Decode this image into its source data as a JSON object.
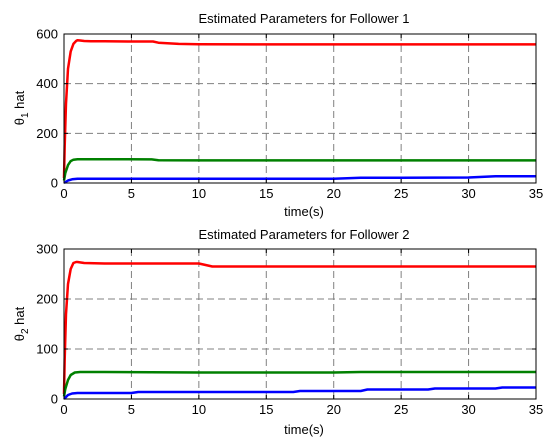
{
  "figure": {
    "background": "#ffffff"
  },
  "chart_data": [
    {
      "type": "line",
      "title": "Estimated Parameters for Follower 1",
      "xlabel": "time(s)",
      "ylabel_main": "θ",
      "ylabel_sub": "1",
      "ylabel_suffix": " hat",
      "xlim": [
        0,
        35
      ],
      "ylim": [
        0,
        600
      ],
      "xticks": [
        0,
        5,
        10,
        15,
        20,
        25,
        30,
        35
      ],
      "yticks": [
        0,
        200,
        400,
        600
      ],
      "grid": true,
      "series": [
        {
          "color": "#ff0000",
          "x": [
            0,
            0.05,
            0.15,
            0.3,
            0.5,
            0.7,
            0.9,
            1.0,
            1.2,
            1.5,
            2,
            3,
            5,
            6.6,
            7,
            8.5,
            10,
            15,
            20,
            25,
            30,
            35
          ],
          "y": [
            20,
            150,
            320,
            460,
            530,
            560,
            572,
            575,
            574,
            572,
            571,
            571,
            570,
            570,
            565,
            560,
            559,
            558,
            558,
            558,
            558,
            558
          ]
        },
        {
          "color": "#008000",
          "x": [
            0,
            0.1,
            0.3,
            0.5,
            0.7,
            1.0,
            1.5,
            3,
            6.5,
            7,
            10,
            15,
            20,
            25,
            30,
            35
          ],
          "y": [
            10,
            40,
            72,
            88,
            94,
            96,
            96,
            96,
            95,
            92,
            91,
            91,
            91,
            91,
            91,
            91
          ],
          "step": false
        },
        {
          "color": "#0000ff",
          "x": [
            0,
            0.3,
            0.6,
            1.0,
            5,
            10,
            15,
            20,
            22,
            25,
            30,
            32,
            35
          ],
          "y": [
            0,
            10,
            15,
            17,
            17,
            17,
            17,
            17,
            21,
            21,
            22,
            27,
            27
          ]
        }
      ]
    },
    {
      "type": "line",
      "title": "Estimated Parameters for Follower 2",
      "xlabel": "time(s)",
      "ylabel_main": "θ",
      "ylabel_sub": "2",
      "ylabel_suffix": " hat",
      "xlim": [
        0,
        35
      ],
      "ylim": [
        0,
        300
      ],
      "xticks": [
        0,
        5,
        10,
        15,
        20,
        25,
        30,
        35
      ],
      "yticks": [
        0,
        100,
        200,
        300
      ],
      "grid": true,
      "series": [
        {
          "color": "#ff0000",
          "x": [
            0,
            0.05,
            0.15,
            0.3,
            0.5,
            0.7,
            0.9,
            1.0,
            1.5,
            3,
            7,
            10,
            10.5,
            11,
            15,
            20,
            25,
            30,
            35
          ],
          "y": [
            10,
            80,
            170,
            230,
            260,
            272,
            274,
            274,
            272,
            271,
            271,
            271,
            268,
            265,
            265,
            265,
            265,
            265,
            265
          ]
        },
        {
          "color": "#008000",
          "x": [
            0,
            0.1,
            0.3,
            0.5,
            0.8,
            1.2,
            3,
            10,
            15,
            20,
            22,
            25,
            30,
            35
          ],
          "y": [
            5,
            20,
            38,
            48,
            53,
            54,
            54,
            53,
            53,
            53,
            54,
            54,
            54,
            54
          ]
        },
        {
          "color": "#0000ff",
          "x": [
            0,
            0.3,
            0.6,
            1.0,
            3,
            5,
            5.5,
            10,
            17,
            17.5,
            22,
            22.5,
            27,
            27.5,
            32,
            32.5,
            35
          ],
          "y": [
            0,
            8,
            11,
            12,
            12,
            12,
            14,
            14,
            14,
            16,
            16,
            19,
            19,
            21,
            21,
            23,
            23
          ]
        }
      ]
    }
  ]
}
